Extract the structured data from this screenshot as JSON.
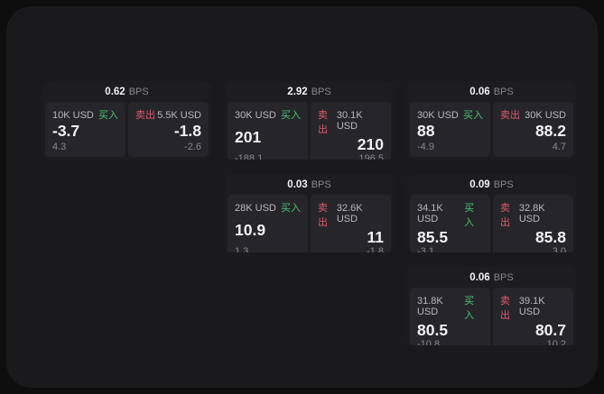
{
  "theme": {
    "outer_bg": "#0e0e0f",
    "panel_bg": "#1a1a1c",
    "card_bg": "#1d1d20",
    "tile_bg": "#26262a",
    "buy_color": "#4bc273",
    "sell_color": "#e05a6d"
  },
  "labels": {
    "buy": "买入",
    "sell": "卖出",
    "bps": "BPS"
  },
  "cards": [
    {
      "row": 1,
      "col": 1,
      "bps": "0.62",
      "buy": {
        "amount": "10K USD",
        "price": "-3.7",
        "delta": "4.3"
      },
      "sell": {
        "amount": "5.5K USD",
        "price": "-1.8",
        "delta": "-2.6"
      }
    },
    {
      "row": 1,
      "col": 2,
      "bps": "2.92",
      "buy": {
        "amount": "30K USD",
        "price": "201",
        "delta": "-188.1"
      },
      "sell": {
        "amount": "30.1K USD",
        "price": "210",
        "delta": "196.5"
      }
    },
    {
      "row": 1,
      "col": 3,
      "bps": "0.06",
      "buy": {
        "amount": "30K USD",
        "price": "88",
        "delta": "-4.9"
      },
      "sell": {
        "amount": "30K USD",
        "price": "88.2",
        "delta": "4.7"
      }
    },
    {
      "row": 2,
      "col": 2,
      "bps": "0.03",
      "buy": {
        "amount": "28K USD",
        "price": "10.9",
        "delta": "1.3"
      },
      "sell": {
        "amount": "32.6K USD",
        "price": "11",
        "delta": "-1.8"
      }
    },
    {
      "row": 2,
      "col": 3,
      "bps": "0.09",
      "buy": {
        "amount": "34.1K USD",
        "price": "85.5",
        "delta": "-3.1"
      },
      "sell": {
        "amount": "32.8K USD",
        "price": "85.8",
        "delta": "3.0"
      }
    },
    {
      "row": 3,
      "col": 3,
      "bps": "0.06",
      "buy": {
        "amount": "31.8K USD",
        "price": "80.5",
        "delta": "-10.8"
      },
      "sell": {
        "amount": "39.1K USD",
        "price": "80.7",
        "delta": "10.2"
      }
    }
  ]
}
